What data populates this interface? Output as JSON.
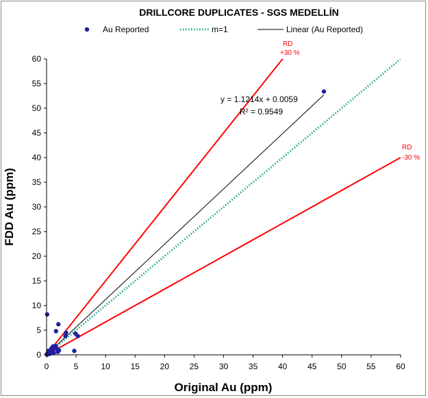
{
  "chart_data": {
    "type": "scatter",
    "title": "DRILLCORE DUPLICATES - SGS MEDELLÍN",
    "xlabel": "Original Au (ppm)",
    "ylabel": "FDD  Au (ppm)",
    "xlim": [
      0,
      60
    ],
    "ylim": [
      0,
      60
    ],
    "xticks": [
      0,
      5,
      10,
      15,
      20,
      25,
      30,
      35,
      40,
      45,
      50,
      55,
      60
    ],
    "yticks": [
      0,
      5,
      10,
      15,
      20,
      25,
      30,
      35,
      40,
      45,
      50,
      55,
      60
    ],
    "grid": false,
    "legend_position": "top",
    "legend": [
      "Au Reported",
      "m=1",
      "Linear (Au Reported)"
    ],
    "series": [
      {
        "name": "Au Reported",
        "kind": "points",
        "color": "#1f1fa0",
        "x": [
          0.05,
          0.1,
          0.15,
          0.2,
          0.25,
          0.3,
          0.4,
          0.5,
          0.6,
          0.7,
          0.8,
          1.0,
          1.1,
          1.2,
          1.3,
          1.5,
          1.6,
          1.8,
          1.9,
          2.0,
          2.1,
          3.2,
          3.3,
          4.7,
          4.9,
          5.3,
          0.1,
          0.3,
          0.5,
          0.9,
          47.0
        ],
        "y": [
          0.1,
          0.05,
          0.3,
          0.2,
          0.4,
          0.5,
          0.3,
          0.6,
          0.8,
          0.5,
          1.2,
          1.0,
          1.7,
          0.4,
          1.5,
          1.8,
          4.8,
          1.2,
          0.6,
          6.2,
          0.9,
          3.8,
          4.5,
          0.8,
          4.3,
          3.8,
          8.2,
          0.8,
          0.2,
          1.4,
          53.4
        ]
      },
      {
        "name": "m=1",
        "kind": "dotted-line",
        "color": "#1aa58a",
        "slope": 1
      },
      {
        "name": "Linear (Au Reported)",
        "kind": "trendline",
        "color": "#000000",
        "slope": 1.1214,
        "intercept": 0.0059,
        "x_range": [
          0,
          47
        ]
      },
      {
        "name": "RD +30 %",
        "kind": "bound-line",
        "color": "#ff0000",
        "slope": 1.5
      },
      {
        "name": "RD -30 %",
        "kind": "bound-line",
        "color": "#ff0000",
        "slope": 0.6667
      }
    ],
    "annotations": {
      "equation": "y = 1.1214x + 0.0059",
      "r_squared": "R² = 0.9549",
      "rd_plus_label": "RD",
      "rd_plus_value": "+30 %",
      "rd_minus_label": "RD",
      "rd_minus_value": "-30 %"
    }
  },
  "colors": {
    "points": "#1f1fa0",
    "m1": "#1aa58a",
    "trend": "#000000",
    "rd": "#ff0000",
    "axis": "#000000"
  }
}
